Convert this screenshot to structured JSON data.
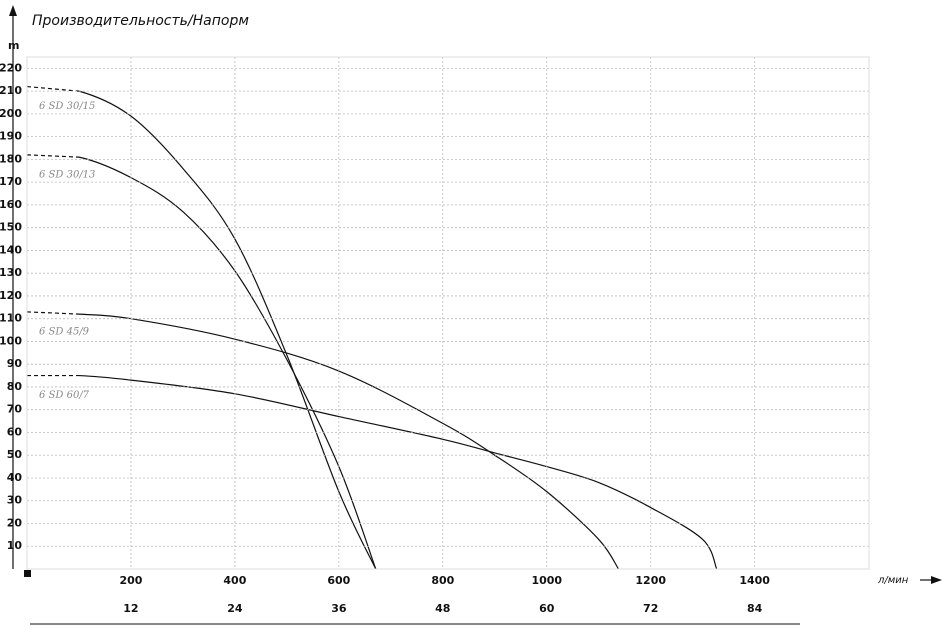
{
  "chart_data": {
    "type": "line",
    "title": "Производительность/Напорм",
    "y_label": "m",
    "x_label": "л/мин",
    "xlim": [
      0,
      1620
    ],
    "xticks": [
      200,
      400,
      600,
      800,
      1000,
      1200,
      1400
    ],
    "x2lim": [
      0,
      97.2
    ],
    "x2ticks": [
      12,
      24,
      36,
      48,
      60,
      72,
      84
    ],
    "ylim": [
      0,
      225
    ],
    "yticks": [
      10,
      20,
      30,
      40,
      50,
      60,
      70,
      80,
      90,
      100,
      110,
      120,
      130,
      140,
      150,
      160,
      170,
      180,
      190,
      200,
      210,
      220
    ],
    "grid": true,
    "series": [
      {
        "name": "6 SD 30/15",
        "color": "#111111",
        "x": [
          0,
          100,
          200,
          300,
          400,
          500,
          600,
          671
        ],
        "values": [
          212,
          210,
          199,
          176,
          145,
          94,
          34,
          0
        ]
      },
      {
        "name": "6 SD 30/13",
        "color": "#111111",
        "x": [
          0,
          100,
          200,
          300,
          400,
          500,
          600,
          671
        ],
        "values": [
          182,
          181,
          172,
          157,
          131,
          92,
          45,
          0
        ]
      },
      {
        "name": "6 SD 45/9",
        "color": "#111111",
        "x": [
          0,
          100,
          200,
          400,
          600,
          800,
          900,
          1000,
          1100,
          1138
        ],
        "values": [
          113,
          112,
          110,
          101,
          87,
          64,
          50,
          34,
          13,
          0
        ]
      },
      {
        "name": "6 SD 60/7",
        "color": "#111111",
        "x": [
          0,
          100,
          200,
          400,
          600,
          800,
          900,
          1000,
          1100,
          1200,
          1300,
          1327
        ],
        "values": [
          85,
          85,
          83,
          77,
          67,
          57,
          51,
          45,
          38,
          27,
          13,
          0
        ]
      }
    ]
  }
}
